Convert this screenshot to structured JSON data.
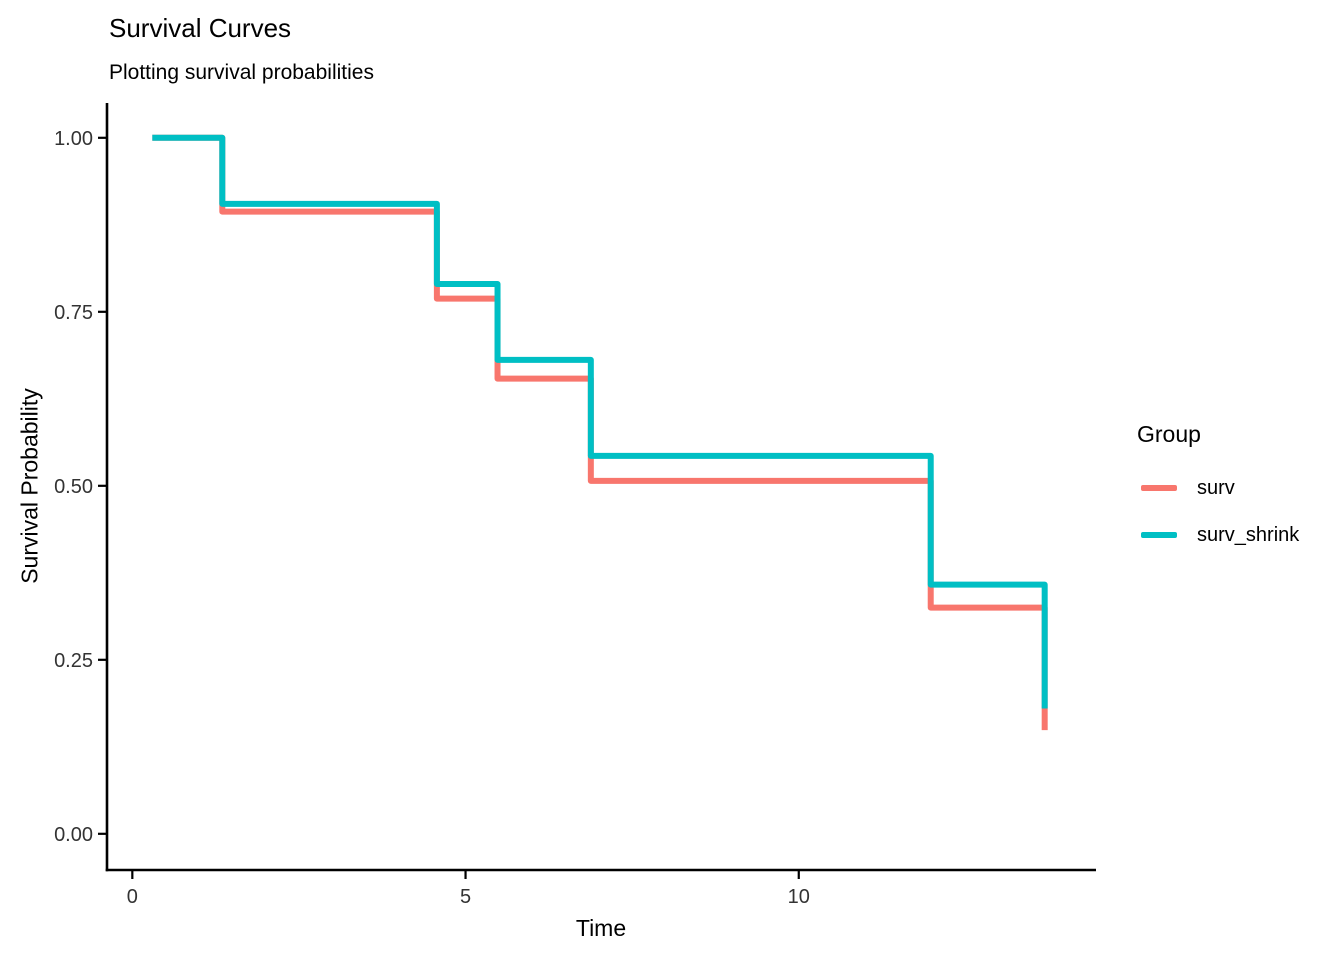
{
  "chart_data": {
    "type": "line",
    "subtype": "step",
    "title": "Survival Curves",
    "subtitle": "Plotting survival probabilities",
    "xlabel": "Time",
    "ylabel": "Survival Probability",
    "xlim": [
      -0.38,
      14.46
    ],
    "ylim": [
      -0.052,
      1.05
    ],
    "grid": false,
    "legend_position": "right",
    "legend_title": "Group",
    "axis_color": "#000000",
    "tick_label_color": "#333333",
    "x_ticks": [
      {
        "v": 0,
        "label": "0"
      },
      {
        "v": 5,
        "label": "5"
      },
      {
        "v": 10,
        "label": "10"
      }
    ],
    "y_ticks": [
      {
        "v": 0.0,
        "label": "0.00"
      },
      {
        "v": 0.25,
        "label": "0.25"
      },
      {
        "v": 0.5,
        "label": "0.50"
      },
      {
        "v": 0.75,
        "label": "0.75"
      },
      {
        "v": 1.0,
        "label": "1.00"
      }
    ],
    "series": [
      {
        "name": "surv",
        "color": "#F8766D",
        "steps": [
          [
            0.3,
            1.0
          ],
          [
            1.35,
            0.894
          ],
          [
            4.57,
            0.769
          ],
          [
            5.48,
            0.654
          ],
          [
            6.88,
            0.507
          ],
          [
            11.98,
            0.325
          ],
          [
            13.69,
            0.149
          ]
        ]
      },
      {
        "name": "surv_shrink",
        "color": "#00BFC4",
        "steps": [
          [
            0.3,
            1.0
          ],
          [
            1.35,
            0.905
          ],
          [
            4.57,
            0.79
          ],
          [
            5.48,
            0.681
          ],
          [
            6.88,
            0.543
          ],
          [
            11.98,
            0.358
          ],
          [
            13.69,
            0.18
          ]
        ]
      }
    ]
  }
}
